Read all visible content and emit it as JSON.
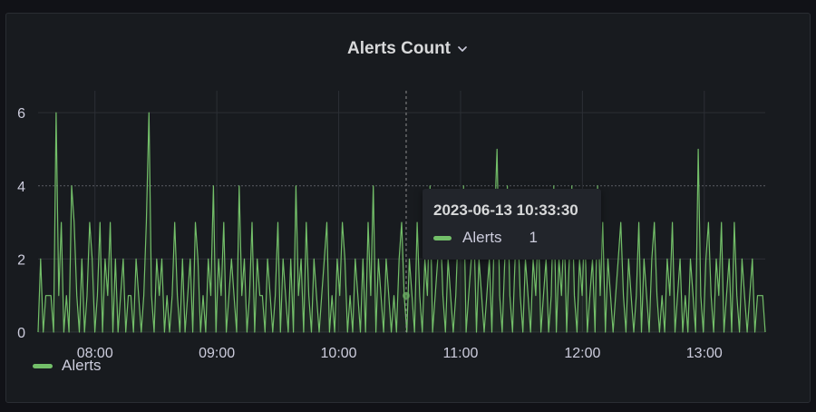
{
  "panel": {
    "title": "Alerts Count"
  },
  "icons": {
    "title_menu": "chevron-down-icon"
  },
  "colors": {
    "background": "#111217",
    "panel": "#181b1f",
    "series": "#73bf69",
    "grid": "#2c2f35",
    "text": "#ccccdc"
  },
  "legend": {
    "items": [
      {
        "label": "Alerts"
      }
    ]
  },
  "tooltip": {
    "time": "2023-06-13 10:33:30",
    "series": "Alerts",
    "value": "1"
  },
  "chart_data": {
    "type": "line",
    "title": "Alerts Count",
    "xlabel": "",
    "ylabel": "",
    "x_ticks": [
      "08:00",
      "09:00",
      "10:00",
      "11:00",
      "12:00",
      "13:00"
    ],
    "y_ticks": [
      0,
      2,
      4,
      6
    ],
    "x_range": [
      "07:32",
      "13:30"
    ],
    "ylim": [
      0,
      6
    ],
    "grid": true,
    "legend_position": "bottom-left",
    "highlighted_threshold": 4,
    "series": [
      {
        "name": "Alerts",
        "color": "#73bf69",
        "sample_interval_minutes": 0.5,
        "values": [
          0,
          2,
          0,
          1,
          1,
          1,
          0,
          6,
          1,
          3,
          0,
          1,
          0,
          4,
          3,
          1,
          0,
          2,
          0,
          1,
          3,
          2,
          0,
          1,
          3,
          0,
          2,
          1,
          3,
          0,
          2,
          0,
          1,
          2,
          0,
          1,
          1,
          0,
          2,
          1,
          0,
          1,
          3,
          6,
          1,
          0,
          2,
          1,
          2,
          0,
          1,
          0,
          1,
          3,
          1,
          0,
          2,
          0,
          1,
          2,
          0,
          3,
          2,
          0,
          1,
          0,
          2,
          1,
          4,
          0,
          2,
          1,
          3,
          0,
          1,
          2,
          1,
          0,
          4,
          1,
          2,
          0,
          1,
          3,
          0,
          2,
          1,
          1,
          0,
          2,
          1,
          0,
          1,
          3,
          0,
          2,
          1,
          0,
          2,
          0,
          4,
          1,
          2,
          0,
          3,
          1,
          0,
          2,
          1,
          0,
          1,
          2,
          3,
          0,
          1,
          0,
          2,
          1,
          3,
          2,
          0,
          1,
          0,
          2,
          1,
          0,
          2,
          0,
          3,
          1,
          4,
          0,
          2,
          1,
          0,
          2,
          1,
          0,
          1,
          0,
          2,
          3,
          1,
          0,
          2,
          1,
          0,
          3,
          1,
          0,
          2,
          1,
          4,
          0,
          1,
          2,
          3,
          1,
          0,
          2,
          1,
          0,
          1,
          3,
          2,
          4,
          0,
          1,
          2,
          3,
          0,
          2,
          1,
          0,
          1,
          2,
          0,
          3,
          5,
          1,
          0,
          2,
          4,
          1,
          0,
          2,
          3,
          1,
          0,
          2,
          1,
          0,
          2,
          1,
          3,
          0,
          1,
          2,
          0,
          1,
          4,
          0,
          2,
          1,
          3,
          0,
          2,
          4,
          1,
          0,
          2,
          1,
          3,
          0,
          1,
          2,
          0,
          4,
          1,
          3,
          0,
          2,
          1,
          0,
          1,
          2,
          3,
          1,
          0,
          2,
          1,
          0,
          1,
          3,
          0,
          2,
          1,
          0,
          2,
          3,
          1,
          0,
          1,
          0,
          2,
          1,
          3,
          0,
          1,
          2,
          0,
          1,
          0,
          2,
          1,
          0,
          5,
          1,
          0,
          2,
          3,
          1,
          0,
          2,
          1,
          3,
          0,
          1,
          2,
          0,
          3,
          1,
          0,
          2,
          1,
          0,
          1,
          2,
          0,
          1,
          1,
          1,
          0
        ]
      }
    ]
  }
}
